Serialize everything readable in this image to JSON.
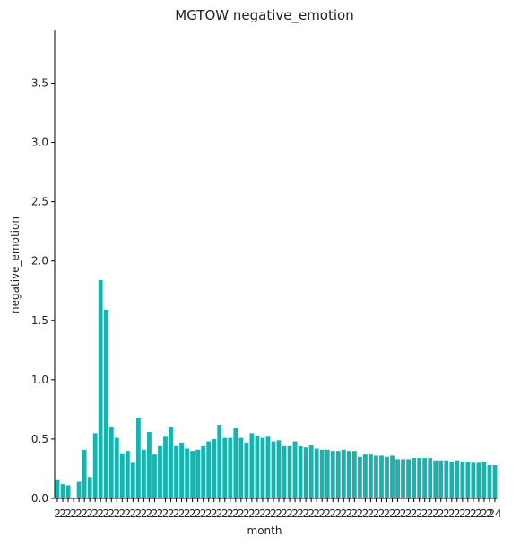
{
  "chart_data": {
    "type": "bar",
    "title": "MGTOW negative_emotion",
    "xlabel": "month",
    "ylabel": "negative_emotion",
    "ylim": [
      0,
      3.95
    ],
    "yticks": [
      0.0,
      0.5,
      1.0,
      1.5,
      2.0,
      2.5,
      3.0,
      3.5
    ],
    "ytick_labels": [
      "0.0",
      "0.5",
      "1.0",
      "1.5",
      "2.0",
      "2.5",
      "3.0",
      "3.5"
    ],
    "bar_color": "#17b3ae",
    "grid": false,
    "x_tick_labels_overlapping": true,
    "x_tick_label_start": "2",
    "x_tick_label_end": "24",
    "values": [
      0.16,
      0.12,
      0.11,
      0.0,
      0.14,
      0.41,
      0.18,
      0.55,
      1.84,
      1.59,
      0.6,
      0.51,
      0.38,
      0.4,
      0.3,
      0.68,
      0.41,
      0.56,
      0.37,
      0.44,
      0.52,
      0.6,
      0.44,
      0.47,
      0.42,
      0.4,
      0.41,
      0.44,
      0.48,
      0.5,
      0.62,
      0.51,
      0.51,
      0.59,
      0.51,
      0.47,
      0.55,
      0.53,
      0.51,
      0.52,
      0.48,
      0.49,
      0.44,
      0.44,
      0.48,
      0.44,
      0.43,
      0.45,
      0.42,
      0.41,
      0.41,
      0.4,
      0.4,
      0.41,
      0.4,
      0.4,
      0.35,
      0.37,
      0.37,
      0.36,
      0.36,
      0.35,
      0.36,
      0.33,
      0.33,
      0.33,
      0.34,
      0.34,
      0.34,
      0.34,
      0.32,
      0.32,
      0.32,
      0.31,
      0.32,
      0.31,
      0.31,
      0.3,
      0.3,
      0.31,
      0.28,
      0.28
    ]
  }
}
